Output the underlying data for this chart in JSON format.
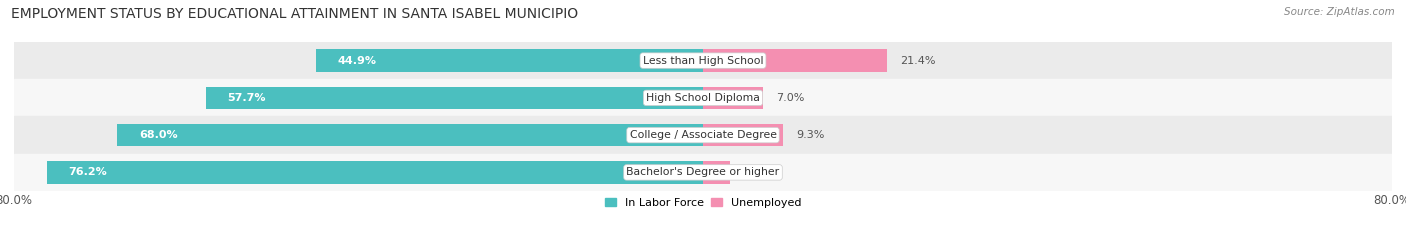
{
  "title": "EMPLOYMENT STATUS BY EDUCATIONAL ATTAINMENT IN SANTA ISABEL MUNICIPIO",
  "source": "Source: ZipAtlas.com",
  "categories": [
    "Less than High School",
    "High School Diploma",
    "College / Associate Degree",
    "Bachelor's Degree or higher"
  ],
  "in_labor_force": [
    44.9,
    57.7,
    68.0,
    76.2
  ],
  "unemployed": [
    21.4,
    7.0,
    9.3,
    3.1
  ],
  "labor_force_color": "#4BBFBF",
  "unemployed_color": "#F48FB1",
  "x_min": -80.0,
  "x_max": 80.0,
  "x_left_label": "80.0%",
  "x_right_label": "80.0%",
  "bar_height": 0.6,
  "row_bg_colors": [
    "#ebebeb",
    "#f7f7f7",
    "#ebebeb",
    "#f7f7f7"
  ],
  "label_color": "#555555",
  "title_fontsize": 10.0,
  "axis_fontsize": 8.5,
  "bar_label_fontsize": 8.0,
  "category_fontsize": 7.8,
  "legend_fontsize": 8.0,
  "lf_label_white_threshold": 10.0
}
